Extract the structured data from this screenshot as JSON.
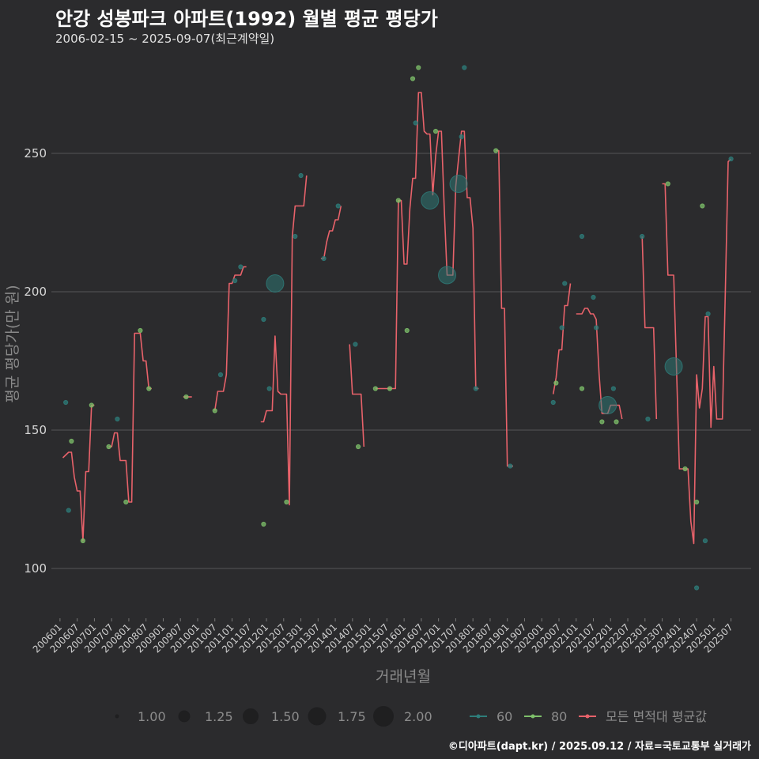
{
  "chart_data": {
    "type": "line",
    "title": "안강 성봉파크 아파트(1992) 월별 평균 평당가",
    "subtitle": "2006-02-15 ~ 2025-09-07(최근계약일)",
    "xlabel": "거래년월",
    "ylabel": "평균 평당가(만 원)",
    "ylim": [
      82,
      286
    ],
    "xlim": [
      "2005-10",
      "2026-02"
    ],
    "y_ticks": [
      100,
      150,
      200,
      250
    ],
    "x_ticks": [
      "200601",
      "200607",
      "200701",
      "200707",
      "200801",
      "200807",
      "200901",
      "200907",
      "201001",
      "201007",
      "201101",
      "201107",
      "201201",
      "201207",
      "201301",
      "201307",
      "201401",
      "201407",
      "201501",
      "201507",
      "201601",
      "201607",
      "201701",
      "201707",
      "201801",
      "201807",
      "201901",
      "201907",
      "202001",
      "202007",
      "202101",
      "202107",
      "202201",
      "202207",
      "202301",
      "202307",
      "202401",
      "202407",
      "202501",
      "202507"
    ],
    "grid": "horizontal",
    "legend_position": "bottom",
    "size_legend": {
      "title": "",
      "values": [
        "1.00",
        "1.25",
        "1.50",
        "1.75",
        "2.00"
      ]
    },
    "area_legend": [
      "60",
      "80"
    ],
    "line_legend": "모든 면적대 평균값",
    "colors": {
      "area_60": "#2e7d7a",
      "area_80": "#7ec06a",
      "line": "#e8626a",
      "background": "#2b2b2d"
    },
    "average_line_segments": [
      [
        [
          "2006-02",
          140
        ],
        [
          "2006-03",
          141
        ],
        [
          "2006-04",
          142
        ],
        [
          "2006-05",
          142
        ],
        [
          "2006-06",
          133
        ],
        [
          "2006-07",
          128
        ],
        [
          "2006-08",
          128
        ],
        [
          "2006-09",
          110
        ],
        [
          "2006-10",
          135
        ],
        [
          "2006-11",
          135
        ],
        [
          "2006-12",
          159
        ],
        [
          "2007-01",
          159
        ]
      ],
      [
        [
          "2007-06",
          144
        ],
        [
          "2007-07",
          144
        ],
        [
          "2007-08",
          149
        ],
        [
          "2007-09",
          149
        ],
        [
          "2007-10",
          139
        ],
        [
          "2007-11",
          139
        ],
        [
          "2007-12",
          139
        ],
        [
          "2008-01",
          124
        ],
        [
          "2008-02",
          124
        ],
        [
          "2008-03",
          185
        ],
        [
          "2008-04",
          185
        ],
        [
          "2008-05",
          185
        ],
        [
          "2008-06",
          175
        ],
        [
          "2008-07",
          175
        ],
        [
          "2008-08",
          165
        ],
        [
          "2008-09",
          165
        ]
      ],
      [
        [
          "2009-08",
          162
        ],
        [
          "2009-09",
          162
        ],
        [
          "2009-10",
          162
        ],
        [
          "2009-11",
          162
        ]
      ],
      [
        [
          "2010-07",
          157
        ],
        [
          "2010-08",
          164
        ],
        [
          "2010-09",
          164
        ],
        [
          "2010-10",
          164
        ],
        [
          "2010-11",
          170
        ],
        [
          "2010-12",
          203
        ],
        [
          "2011-01",
          203
        ],
        [
          "2011-02",
          206
        ],
        [
          "2011-03",
          206
        ],
        [
          "2011-04",
          206
        ],
        [
          "2011-05",
          209
        ],
        [
          "2011-06",
          209
        ]
      ],
      [
        [
          "2011-11",
          153
        ],
        [
          "2011-12",
          153
        ],
        [
          "2012-01",
          157
        ],
        [
          "2012-02",
          157
        ],
        [
          "2012-03",
          157
        ],
        [
          "2012-04",
          184
        ],
        [
          "2012-05",
          164
        ],
        [
          "2012-06",
          163
        ],
        [
          "2012-07",
          163
        ],
        [
          "2012-08",
          163
        ],
        [
          "2012-09",
          123
        ],
        [
          "2012-10",
          220
        ],
        [
          "2012-11",
          231
        ],
        [
          "2012-12",
          231
        ],
        [
          "2013-01",
          231
        ],
        [
          "2013-02",
          231
        ],
        [
          "2013-03",
          242
        ]
      ],
      [
        [
          "2013-08",
          212
        ],
        [
          "2013-09",
          212
        ],
        [
          "2013-10",
          218
        ],
        [
          "2013-11",
          222
        ],
        [
          "2013-12",
          222
        ],
        [
          "2014-01",
          226
        ],
        [
          "2014-02",
          226
        ],
        [
          "2014-03",
          231
        ]
      ],
      [
        [
          "2014-06",
          181
        ],
        [
          "2014-07",
          163
        ],
        [
          "2014-08",
          163
        ],
        [
          "2014-09",
          163
        ],
        [
          "2014-10",
          163
        ],
        [
          "2014-11",
          144
        ]
      ],
      [
        [
          "2015-03",
          165
        ],
        [
          "2015-04",
          165
        ],
        [
          "2015-05",
          165
        ],
        [
          "2015-06",
          165
        ],
        [
          "2015-07",
          165
        ],
        [
          "2015-08",
          165
        ],
        [
          "2015-09",
          165
        ],
        [
          "2015-10",
          165
        ],
        [
          "2015-11",
          233
        ],
        [
          "2015-12",
          233
        ],
        [
          "2016-01",
          210
        ],
        [
          "2016-02",
          210
        ],
        [
          "2016-03",
          230
        ],
        [
          "2016-04",
          241
        ],
        [
          "2016-05",
          241
        ],
        [
          "2016-06",
          272
        ],
        [
          "2016-07",
          272
        ],
        [
          "2016-08",
          258
        ],
        [
          "2016-09",
          257
        ],
        [
          "2016-10",
          257
        ],
        [
          "2016-11",
          235
        ],
        [
          "2016-12",
          249
        ],
        [
          "2017-01",
          258
        ],
        [
          "2017-02",
          258
        ],
        [
          "2017-03",
          230
        ],
        [
          "2017-04",
          206
        ],
        [
          "2017-05",
          206
        ],
        [
          "2017-06",
          206
        ],
        [
          "2017-07",
          238
        ],
        [
          "2017-08",
          248
        ],
        [
          "2017-09",
          258
        ],
        [
          "2017-10",
          258
        ],
        [
          "2017-11",
          234
        ],
        [
          "2017-12",
          234
        ],
        [
          "2018-01",
          223
        ],
        [
          "2018-02",
          165
        ],
        [
          "2018-03",
          165
        ]
      ],
      [
        [
          "2018-09",
          251
        ],
        [
          "2018-10",
          251
        ],
        [
          "2018-11",
          194
        ],
        [
          "2018-12",
          194
        ],
        [
          "2019-01",
          137
        ],
        [
          "2019-02",
          137
        ],
        [
          "2019-03",
          137
        ]
      ],
      [
        [
          "2020-05",
          163
        ],
        [
          "2020-06",
          169
        ],
        [
          "2020-07",
          179
        ],
        [
          "2020-08",
          179
        ],
        [
          "2020-09",
          195
        ],
        [
          "2020-10",
          195
        ],
        [
          "2020-11",
          203
        ]
      ],
      [
        [
          "2021-01",
          192
        ],
        [
          "2021-02",
          192
        ],
        [
          "2021-03",
          192
        ],
        [
          "2021-04",
          194
        ],
        [
          "2021-05",
          194
        ],
        [
          "2021-06",
          192
        ],
        [
          "2021-07",
          192
        ],
        [
          "2021-08",
          190
        ],
        [
          "2021-09",
          170
        ],
        [
          "2021-10",
          156
        ],
        [
          "2021-11",
          156
        ],
        [
          "2021-12",
          156
        ],
        [
          "2022-01",
          159
        ],
        [
          "2022-02",
          159
        ],
        [
          "2022-03",
          159
        ],
        [
          "2022-04",
          159
        ],
        [
          "2022-05",
          154
        ]
      ],
      [
        [
          "2022-12",
          220
        ],
        [
          "2023-01",
          187
        ],
        [
          "2023-02",
          187
        ],
        [
          "2023-03",
          187
        ],
        [
          "2023-04",
          187
        ],
        [
          "2023-05",
          154
        ]
      ],
      [
        [
          "2023-07",
          239
        ],
        [
          "2023-08",
          239
        ],
        [
          "2023-09",
          206
        ],
        [
          "2023-10",
          206
        ],
        [
          "2023-11",
          206
        ],
        [
          "2023-12",
          172
        ],
        [
          "2024-01",
          136
        ],
        [
          "2024-02",
          136
        ],
        [
          "2024-03",
          136
        ],
        [
          "2024-04",
          136
        ],
        [
          "2024-05",
          117
        ],
        [
          "2024-06",
          109
        ],
        [
          "2024-07",
          170
        ],
        [
          "2024-08",
          158
        ],
        [
          "2024-09",
          165
        ],
        [
          "2024-10",
          191
        ],
        [
          "2024-11",
          191
        ],
        [
          "2024-12",
          151
        ],
        [
          "2025-01",
          173
        ],
        [
          "2025-02",
          154
        ],
        [
          "2025-03",
          154
        ],
        [
          "2025-04",
          154
        ],
        [
          "2025-05",
          200
        ],
        [
          "2025-06",
          247
        ],
        [
          "2025-07",
          248
        ]
      ]
    ],
    "points": [
      {
        "x": "2006-03",
        "y": 160,
        "area": "60",
        "count": 1
      },
      {
        "x": "2006-04",
        "y": 121,
        "area": "60",
        "count": 1
      },
      {
        "x": "2006-05",
        "y": 146,
        "area": "80",
        "count": 1
      },
      {
        "x": "2006-09",
        "y": 110,
        "area": "80",
        "count": 1
      },
      {
        "x": "2006-12",
        "y": 159,
        "area": "80",
        "count": 1
      },
      {
        "x": "2007-06",
        "y": 144,
        "area": "80",
        "count": 1
      },
      {
        "x": "2007-09",
        "y": 154,
        "area": "60",
        "count": 1
      },
      {
        "x": "2007-12",
        "y": 124,
        "area": "80",
        "count": 1
      },
      {
        "x": "2008-05",
        "y": 186,
        "area": "80",
        "count": 1
      },
      {
        "x": "2008-08",
        "y": 165,
        "area": "80",
        "count": 1
      },
      {
        "x": "2009-09",
        "y": 162,
        "area": "80",
        "count": 1
      },
      {
        "x": "2010-07",
        "y": 157,
        "area": "80",
        "count": 1
      },
      {
        "x": "2010-09",
        "y": 170,
        "area": "60",
        "count": 1
      },
      {
        "x": "2011-02",
        "y": 204,
        "area": "60",
        "count": 1
      },
      {
        "x": "2011-04",
        "y": 209,
        "area": "60",
        "count": 1
      },
      {
        "x": "2011-12",
        "y": 116,
        "area": "80",
        "count": 1
      },
      {
        "x": "2011-12",
        "y": 190,
        "area": "60",
        "count": 1
      },
      {
        "x": "2012-02",
        "y": 165,
        "area": "60",
        "count": 1
      },
      {
        "x": "2012-04",
        "y": 203,
        "area": "60",
        "count": 2
      },
      {
        "x": "2012-08",
        "y": 124,
        "area": "80",
        "count": 1
      },
      {
        "x": "2012-11",
        "y": 220,
        "area": "60",
        "count": 1
      },
      {
        "x": "2013-01",
        "y": 242,
        "area": "60",
        "count": 1
      },
      {
        "x": "2013-09",
        "y": 212,
        "area": "60",
        "count": 1
      },
      {
        "x": "2014-02",
        "y": 231,
        "area": "60",
        "count": 1
      },
      {
        "x": "2014-08",
        "y": 181,
        "area": "60",
        "count": 1
      },
      {
        "x": "2014-09",
        "y": 144,
        "area": "80",
        "count": 1
      },
      {
        "x": "2015-03",
        "y": 165,
        "area": "80",
        "count": 1
      },
      {
        "x": "2015-08",
        "y": 165,
        "area": "80",
        "count": 1
      },
      {
        "x": "2015-11",
        "y": 233,
        "area": "80",
        "count": 1
      },
      {
        "x": "2016-02",
        "y": 186,
        "area": "80",
        "count": 1
      },
      {
        "x": "2016-04",
        "y": 277,
        "area": "80",
        "count": 1
      },
      {
        "x": "2016-06",
        "y": 281,
        "area": "80",
        "count": 1
      },
      {
        "x": "2016-05",
        "y": 261,
        "area": "60",
        "count": 1
      },
      {
        "x": "2016-10",
        "y": 233,
        "area": "60",
        "count": 2
      },
      {
        "x": "2016-12",
        "y": 258,
        "area": "80",
        "count": 1
      },
      {
        "x": "2017-04",
        "y": 206,
        "area": "60",
        "count": 2
      },
      {
        "x": "2017-08",
        "y": 239,
        "area": "60",
        "count": 2
      },
      {
        "x": "2017-09",
        "y": 256,
        "area": "60",
        "count": 1
      },
      {
        "x": "2017-10",
        "y": 281,
        "area": "60",
        "count": 1
      },
      {
        "x": "2018-02",
        "y": 165,
        "area": "60",
        "count": 1
      },
      {
        "x": "2018-09",
        "y": 251,
        "area": "80",
        "count": 1
      },
      {
        "x": "2019-02",
        "y": 137,
        "area": "60",
        "count": 1
      },
      {
        "x": "2020-05",
        "y": 160,
        "area": "60",
        "count": 1
      },
      {
        "x": "2020-06",
        "y": 167,
        "area": "80",
        "count": 1
      },
      {
        "x": "2020-08",
        "y": 187,
        "area": "60",
        "count": 1
      },
      {
        "x": "2020-09",
        "y": 203,
        "area": "60",
        "count": 1
      },
      {
        "x": "2021-03",
        "y": 165,
        "area": "80",
        "count": 1
      },
      {
        "x": "2021-03",
        "y": 220,
        "area": "60",
        "count": 1
      },
      {
        "x": "2021-07",
        "y": 198,
        "area": "60",
        "count": 1
      },
      {
        "x": "2021-08",
        "y": 187,
        "area": "60",
        "count": 1
      },
      {
        "x": "2021-10",
        "y": 153,
        "area": "80",
        "count": 1
      },
      {
        "x": "2021-12",
        "y": 159,
        "area": "60",
        "count": 2
      },
      {
        "x": "2022-02",
        "y": 165,
        "area": "60",
        "count": 1
      },
      {
        "x": "2022-03",
        "y": 153,
        "area": "80",
        "count": 1
      },
      {
        "x": "2022-12",
        "y": 220,
        "area": "60",
        "count": 1
      },
      {
        "x": "2023-02",
        "y": 154,
        "area": "60",
        "count": 1
      },
      {
        "x": "2023-09",
        "y": 239,
        "area": "80",
        "count": 1
      },
      {
        "x": "2023-11",
        "y": 173,
        "area": "60",
        "count": 2
      },
      {
        "x": "2024-03",
        "y": 136,
        "area": "80",
        "count": 1
      },
      {
        "x": "2024-07",
        "y": 124,
        "area": "80",
        "count": 1
      },
      {
        "x": "2024-07",
        "y": 93,
        "area": "60",
        "count": 1
      },
      {
        "x": "2024-09",
        "y": 231,
        "area": "80",
        "count": 1
      },
      {
        "x": "2024-10",
        "y": 110,
        "area": "60",
        "count": 1
      },
      {
        "x": "2024-11",
        "y": 192,
        "area": "60",
        "count": 1
      },
      {
        "x": "2025-07",
        "y": 248,
        "area": "60",
        "count": 1
      }
    ]
  },
  "footer": {
    "credit": "©디아파트(dapt.kr) / 2025.09.12 / 자료=국토교통부 실거래가"
  }
}
